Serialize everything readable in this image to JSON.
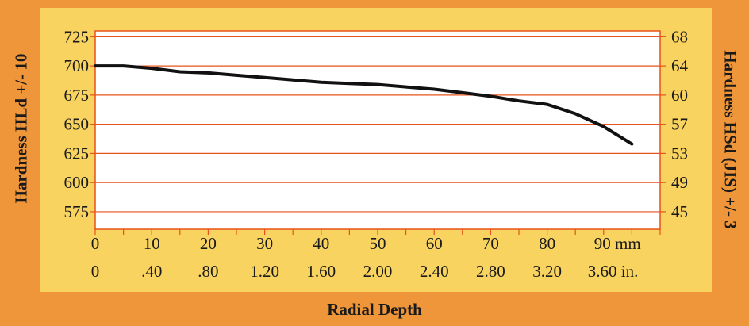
{
  "chart_data": {
    "type": "line",
    "xlabel": "Radial Depth",
    "ylabel": "Hardness HLd +/- 10",
    "y2label": "Hardness HSd (JIS) +/- 3",
    "xlim": [
      0,
      100
    ],
    "ylim": [
      560,
      730
    ],
    "y_ticks": [
      725,
      700,
      675,
      650,
      625,
      600,
      575
    ],
    "y2_tick_labels": [
      "68",
      "64",
      "60",
      "57",
      "53",
      "49",
      "45"
    ],
    "x_ticks_mm": [
      {
        "value": 0,
        "label": "0"
      },
      {
        "value": 10,
        "label": "10"
      },
      {
        "value": 20,
        "label": "20"
      },
      {
        "value": 30,
        "label": "30"
      },
      {
        "value": 40,
        "label": "40"
      },
      {
        "value": 50,
        "label": "50"
      },
      {
        "value": 60,
        "label": "60"
      },
      {
        "value": 70,
        "label": "70"
      },
      {
        "value": 80,
        "label": "80"
      },
      {
        "value": 90,
        "label": "90 mm"
      }
    ],
    "x_ticks_in": [
      {
        "value": 0,
        "label": "0"
      },
      {
        "value": 10,
        "label": ".40"
      },
      {
        "value": 20,
        "label": ".80"
      },
      {
        "value": 30,
        "label": "1.20"
      },
      {
        "value": 40,
        "label": "1.60"
      },
      {
        "value": 50,
        "label": "2.00"
      },
      {
        "value": 60,
        "label": "2.40"
      },
      {
        "value": 70,
        "label": "2.80"
      },
      {
        "value": 80,
        "label": "3.20"
      },
      {
        "value": 90,
        "label": "3.60 in."
      }
    ],
    "grid": "horizontal",
    "series": [
      {
        "x": [
          0,
          5,
          10,
          15,
          20,
          25,
          30,
          35,
          40,
          45,
          50,
          55,
          60,
          65,
          70,
          75,
          80,
          85,
          90,
          95
        ],
        "values": [
          700,
          700,
          698,
          695,
          694,
          692,
          690,
          688,
          686,
          685,
          684,
          682,
          680,
          677,
          674,
          670,
          667,
          659,
          648,
          633
        ]
      }
    ],
    "colors": {
      "frame": "#f0963a",
      "panel": "#f9d35f",
      "plot_bg": "#ffffff",
      "grid": "#e8521c",
      "line": "#111111"
    }
  }
}
